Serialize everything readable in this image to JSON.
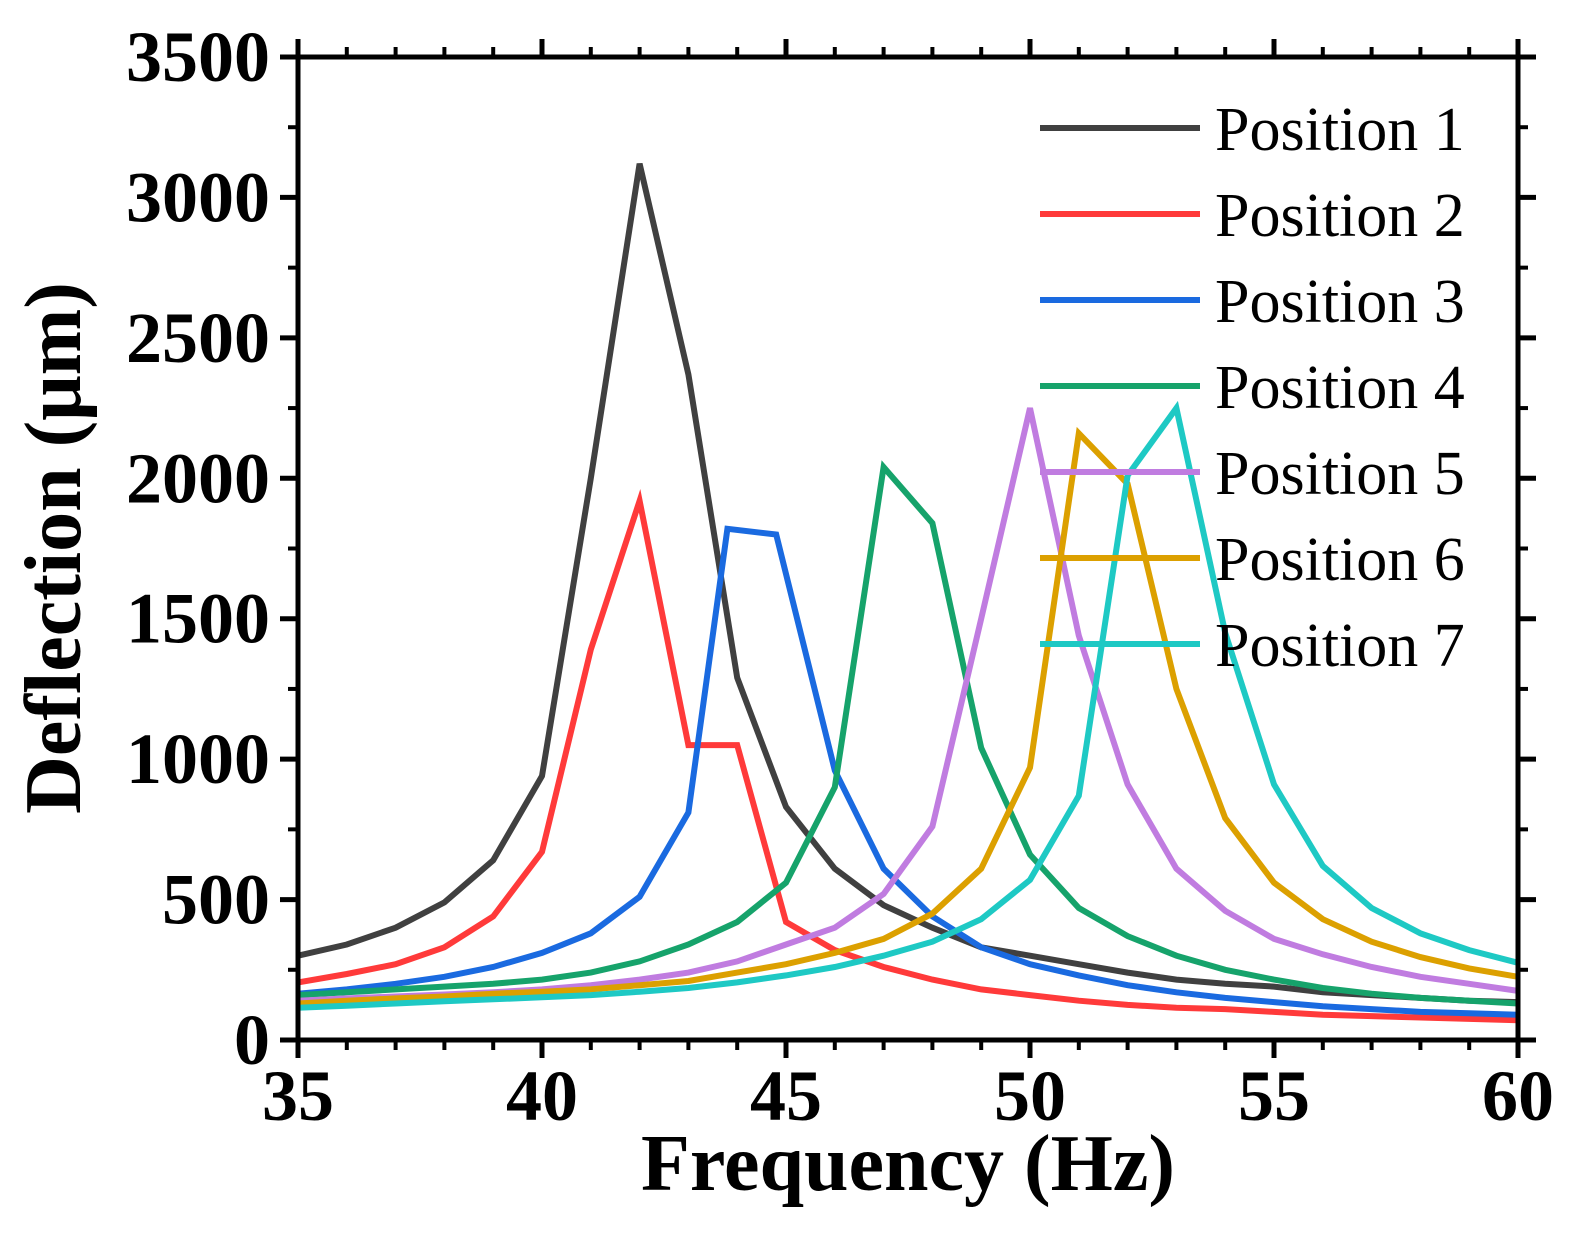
{
  "chart_data": {
    "type": "line",
    "title": "",
    "xlabel": "Frequency (Hz)",
    "ylabel": "Deflection (μm)",
    "xlim": [
      35,
      60
    ],
    "ylim": [
      0,
      3500
    ],
    "x_ticks": [
      35,
      40,
      45,
      50,
      55,
      60
    ],
    "y_ticks": [
      0,
      500,
      1000,
      1500,
      2000,
      2500,
      3000,
      3500
    ],
    "x_tick_labels": [
      "35",
      "40",
      "45",
      "50",
      "55",
      "60"
    ],
    "y_tick_labels": [
      "0",
      "500",
      "1000",
      "1500",
      "2000",
      "2500",
      "3000",
      "3500"
    ],
    "grid": false,
    "legend_position": "top-right",
    "x": [
      35,
      36,
      37,
      38,
      39,
      40,
      41,
      42,
      43,
      44,
      45,
      46,
      47,
      48,
      49,
      50,
      51,
      52,
      53,
      54,
      55,
      56,
      57,
      58,
      59,
      60
    ],
    "series": [
      {
        "name": "Position 1",
        "color": "#404040",
        "points": [
          [
            35,
            300
          ],
          [
            36,
            340
          ],
          [
            37,
            400
          ],
          [
            38,
            490
          ],
          [
            39,
            640
          ],
          [
            40,
            940
          ],
          [
            41,
            2000
          ],
          [
            42,
            3120
          ],
          [
            43,
            2370
          ],
          [
            44,
            1290
          ],
          [
            45,
            830
          ],
          [
            46,
            610
          ],
          [
            47,
            480
          ],
          [
            48,
            400
          ],
          [
            49,
            330
          ],
          [
            50,
            300
          ],
          [
            51,
            270
          ],
          [
            52,
            240
          ],
          [
            53,
            215
          ],
          [
            54,
            200
          ],
          [
            55,
            190
          ],
          [
            56,
            170
          ],
          [
            57,
            160
          ],
          [
            58,
            150
          ],
          [
            59,
            140
          ],
          [
            60,
            135
          ]
        ]
      },
      {
        "name": "Position 2",
        "color": "#ff3a3a",
        "points": [
          [
            35,
            205
          ],
          [
            36,
            235
          ],
          [
            37,
            270
          ],
          [
            38,
            330
          ],
          [
            39,
            440
          ],
          [
            40,
            670
          ],
          [
            41,
            1390
          ],
          [
            42,
            1920
          ],
          [
            43,
            1050
          ],
          [
            44,
            1050
          ],
          [
            45,
            420
          ],
          [
            46,
            320
          ],
          [
            47,
            260
          ],
          [
            48,
            215
          ],
          [
            49,
            180
          ],
          [
            50,
            160
          ],
          [
            51,
            140
          ],
          [
            52,
            125
          ],
          [
            53,
            115
          ],
          [
            54,
            110
          ],
          [
            55,
            100
          ],
          [
            56,
            90
          ],
          [
            57,
            85
          ],
          [
            58,
            80
          ],
          [
            59,
            75
          ],
          [
            60,
            70
          ]
        ]
      },
      {
        "name": "Position 3",
        "color": "#1a6ae0",
        "points": [
          [
            35,
            165
          ],
          [
            36,
            180
          ],
          [
            37,
            200
          ],
          [
            38,
            225
          ],
          [
            39,
            260
          ],
          [
            40,
            310
          ],
          [
            41,
            380
          ],
          [
            42,
            510
          ],
          [
            43,
            810
          ],
          [
            43.8,
            1820
          ],
          [
            44.8,
            1800
          ],
          [
            46,
            960
          ],
          [
            47,
            610
          ],
          [
            48,
            440
          ],
          [
            49,
            330
          ],
          [
            50,
            270
          ],
          [
            51,
            230
          ],
          [
            52,
            195
          ],
          [
            53,
            170
          ],
          [
            54,
            150
          ],
          [
            55,
            135
          ],
          [
            56,
            120
          ],
          [
            57,
            110
          ],
          [
            58,
            100
          ],
          [
            59,
            95
          ],
          [
            60,
            90
          ]
        ]
      },
      {
        "name": "Position 4",
        "color": "#16a36b",
        "points": [
          [
            35,
            160
          ],
          [
            36,
            170
          ],
          [
            37,
            180
          ],
          [
            38,
            190
          ],
          [
            39,
            200
          ],
          [
            40,
            215
          ],
          [
            41,
            240
          ],
          [
            42,
            280
          ],
          [
            43,
            340
          ],
          [
            44,
            420
          ],
          [
            45,
            560
          ],
          [
            46,
            900
          ],
          [
            47,
            2040
          ],
          [
            48,
            1840
          ],
          [
            49,
            1040
          ],
          [
            50,
            660
          ],
          [
            51,
            470
          ],
          [
            52,
            370
          ],
          [
            53,
            300
          ],
          [
            54,
            250
          ],
          [
            55,
            215
          ],
          [
            56,
            185
          ],
          [
            57,
            165
          ],
          [
            58,
            150
          ],
          [
            59,
            140
          ],
          [
            60,
            130
          ]
        ]
      },
      {
        "name": "Position 5",
        "color": "#c07ce0",
        "points": [
          [
            35,
            140
          ],
          [
            36,
            148
          ],
          [
            37,
            155
          ],
          [
            38,
            162
          ],
          [
            39,
            170
          ],
          [
            40,
            180
          ],
          [
            41,
            195
          ],
          [
            42,
            215
          ],
          [
            43,
            240
          ],
          [
            44,
            280
          ],
          [
            45,
            340
          ],
          [
            46,
            400
          ],
          [
            47,
            520
          ],
          [
            48,
            760
          ],
          [
            49,
            1500
          ],
          [
            50,
            2250
          ],
          [
            51,
            1440
          ],
          [
            52,
            910
          ],
          [
            53,
            610
          ],
          [
            54,
            460
          ],
          [
            55,
            360
          ],
          [
            56,
            305
          ],
          [
            57,
            260
          ],
          [
            58,
            225
          ],
          [
            59,
            200
          ],
          [
            60,
            175
          ]
        ]
      },
      {
        "name": "Position 6",
        "color": "#dca000",
        "points": [
          [
            35,
            130
          ],
          [
            36,
            140
          ],
          [
            37,
            148
          ],
          [
            38,
            155
          ],
          [
            39,
            165
          ],
          [
            40,
            172
          ],
          [
            41,
            180
          ],
          [
            42,
            195
          ],
          [
            43,
            210
          ],
          [
            44,
            240
          ],
          [
            45,
            270
          ],
          [
            46,
            310
          ],
          [
            47,
            360
          ],
          [
            48,
            450
          ],
          [
            49,
            610
          ],
          [
            50,
            970
          ],
          [
            51,
            2160
          ],
          [
            52,
            1980
          ],
          [
            53,
            1250
          ],
          [
            54,
            790
          ],
          [
            55,
            560
          ],
          [
            56,
            430
          ],
          [
            57,
            350
          ],
          [
            58,
            295
          ],
          [
            59,
            255
          ],
          [
            60,
            225
          ]
        ]
      },
      {
        "name": "Position 7",
        "color": "#1ec9c4",
        "points": [
          [
            35,
            115
          ],
          [
            36,
            122
          ],
          [
            37,
            130
          ],
          [
            38,
            138
          ],
          [
            39,
            145
          ],
          [
            40,
            152
          ],
          [
            41,
            160
          ],
          [
            42,
            172
          ],
          [
            43,
            185
          ],
          [
            44,
            205
          ],
          [
            45,
            230
          ],
          [
            46,
            260
          ],
          [
            47,
            300
          ],
          [
            48,
            350
          ],
          [
            49,
            430
          ],
          [
            50,
            570
          ],
          [
            51,
            870
          ],
          [
            52,
            2010
          ],
          [
            53,
            2250
          ],
          [
            54,
            1450
          ],
          [
            55,
            910
          ],
          [
            56,
            620
          ],
          [
            57,
            470
          ],
          [
            58,
            380
          ],
          [
            59,
            320
          ],
          [
            60,
            275
          ]
        ]
      }
    ]
  }
}
